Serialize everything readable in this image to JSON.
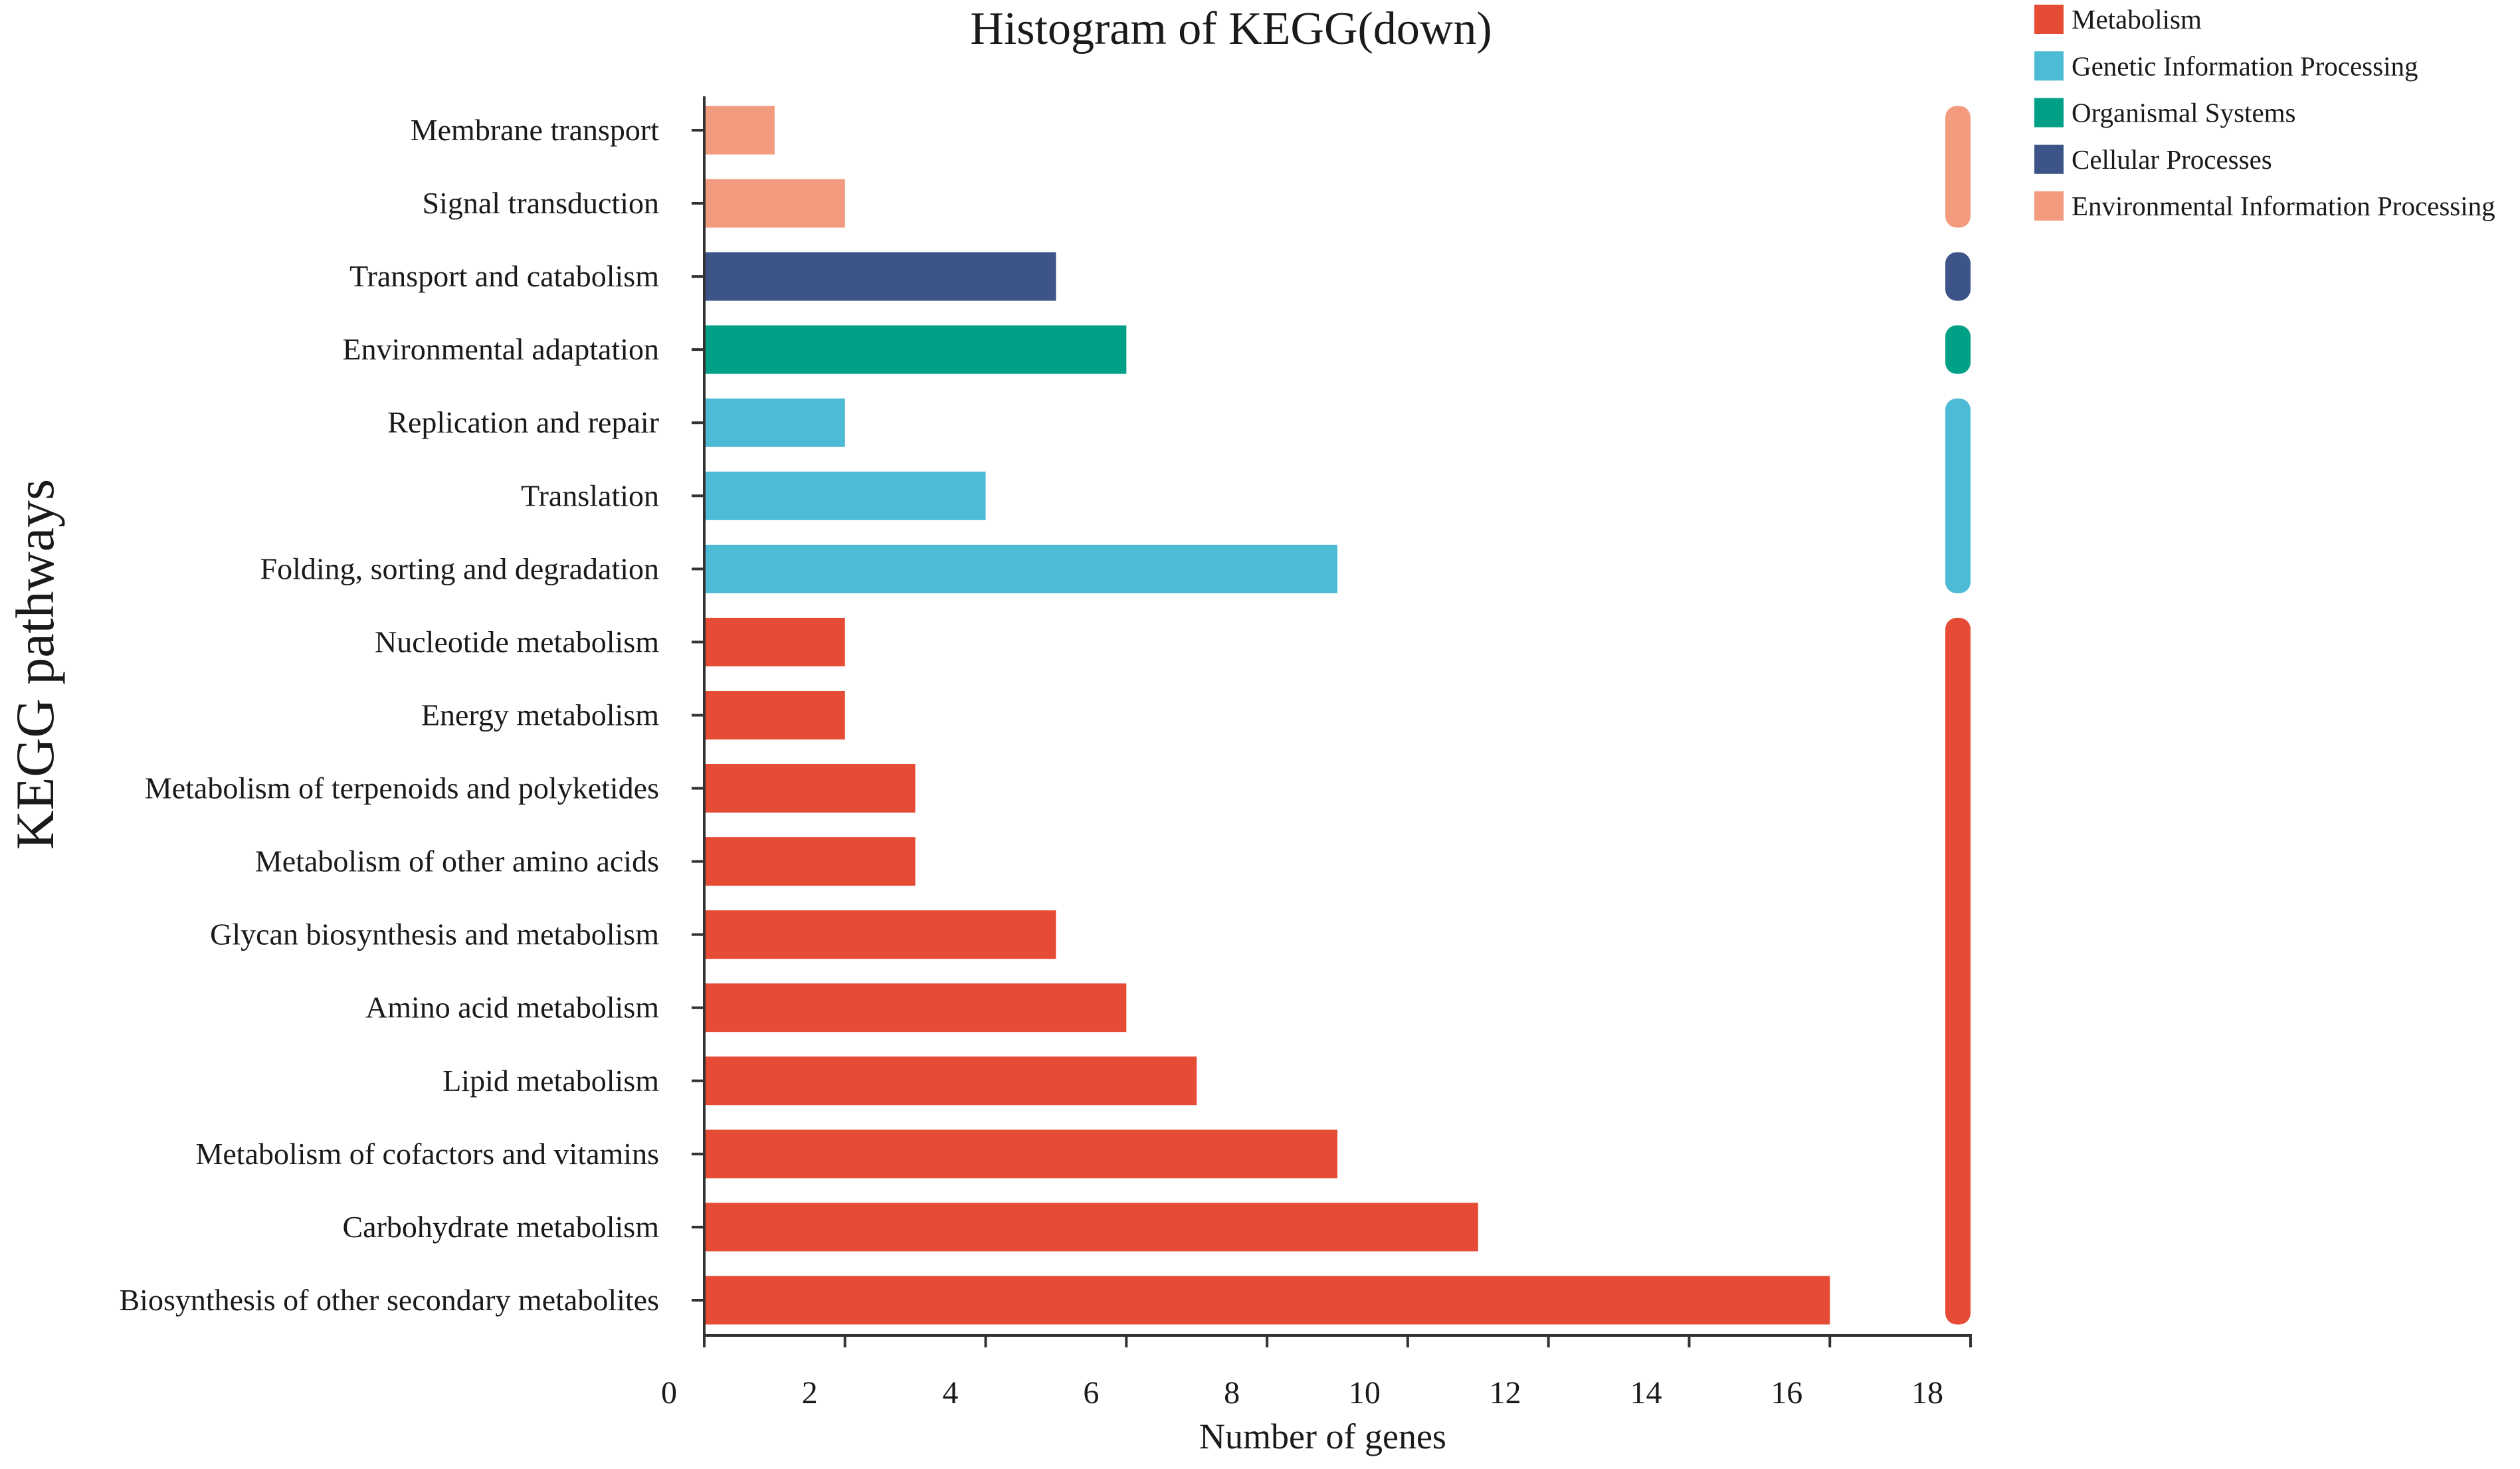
{
  "chart_data": {
    "type": "bar",
    "title": "Histogram of KEGG(down)",
    "xlabel": "Number of genes",
    "ylabel": "KEGG pathways",
    "xlim": [
      0,
      18
    ],
    "xticks": [
      0,
      2,
      4,
      6,
      8,
      10,
      12,
      14,
      16,
      18
    ],
    "categories": [
      "Membrane transport",
      "Signal transduction",
      "Transport and catabolism",
      "Environmental adaptation",
      "Replication and repair",
      "Translation",
      "Folding, sorting and degradation",
      "Nucleotide metabolism",
      "Energy metabolism",
      "Metabolism of terpenoids and polyketides",
      "Metabolism of other amino acids",
      "Glycan biosynthesis and metabolism",
      "Amino acid metabolism",
      "Lipid metabolism",
      "Metabolism of cofactors and vitamins",
      "Carbohydrate metabolism",
      "Biosynthesis of other secondary metabolites"
    ],
    "values": [
      1,
      2,
      5,
      6,
      2,
      4,
      9,
      2,
      2,
      3,
      3,
      5,
      6,
      7,
      9,
      11,
      16
    ],
    "group_index": [
      4,
      4,
      3,
      2,
      1,
      1,
      1,
      0,
      0,
      0,
      0,
      0,
      0,
      0,
      0,
      0,
      0
    ],
    "legend": [
      {
        "name": "Metabolism",
        "color": "#E64B35"
      },
      {
        "name": "Genetic Information Processing",
        "color": "#4DBBD5"
      },
      {
        "name": "Organismal Systems",
        "color": "#00A087"
      },
      {
        "name": "Cellular Processes",
        "color": "#3C5488"
      },
      {
        "name": "Environmental Information Processing",
        "color": "#F39B7F"
      }
    ],
    "legend_position": "top-right"
  }
}
